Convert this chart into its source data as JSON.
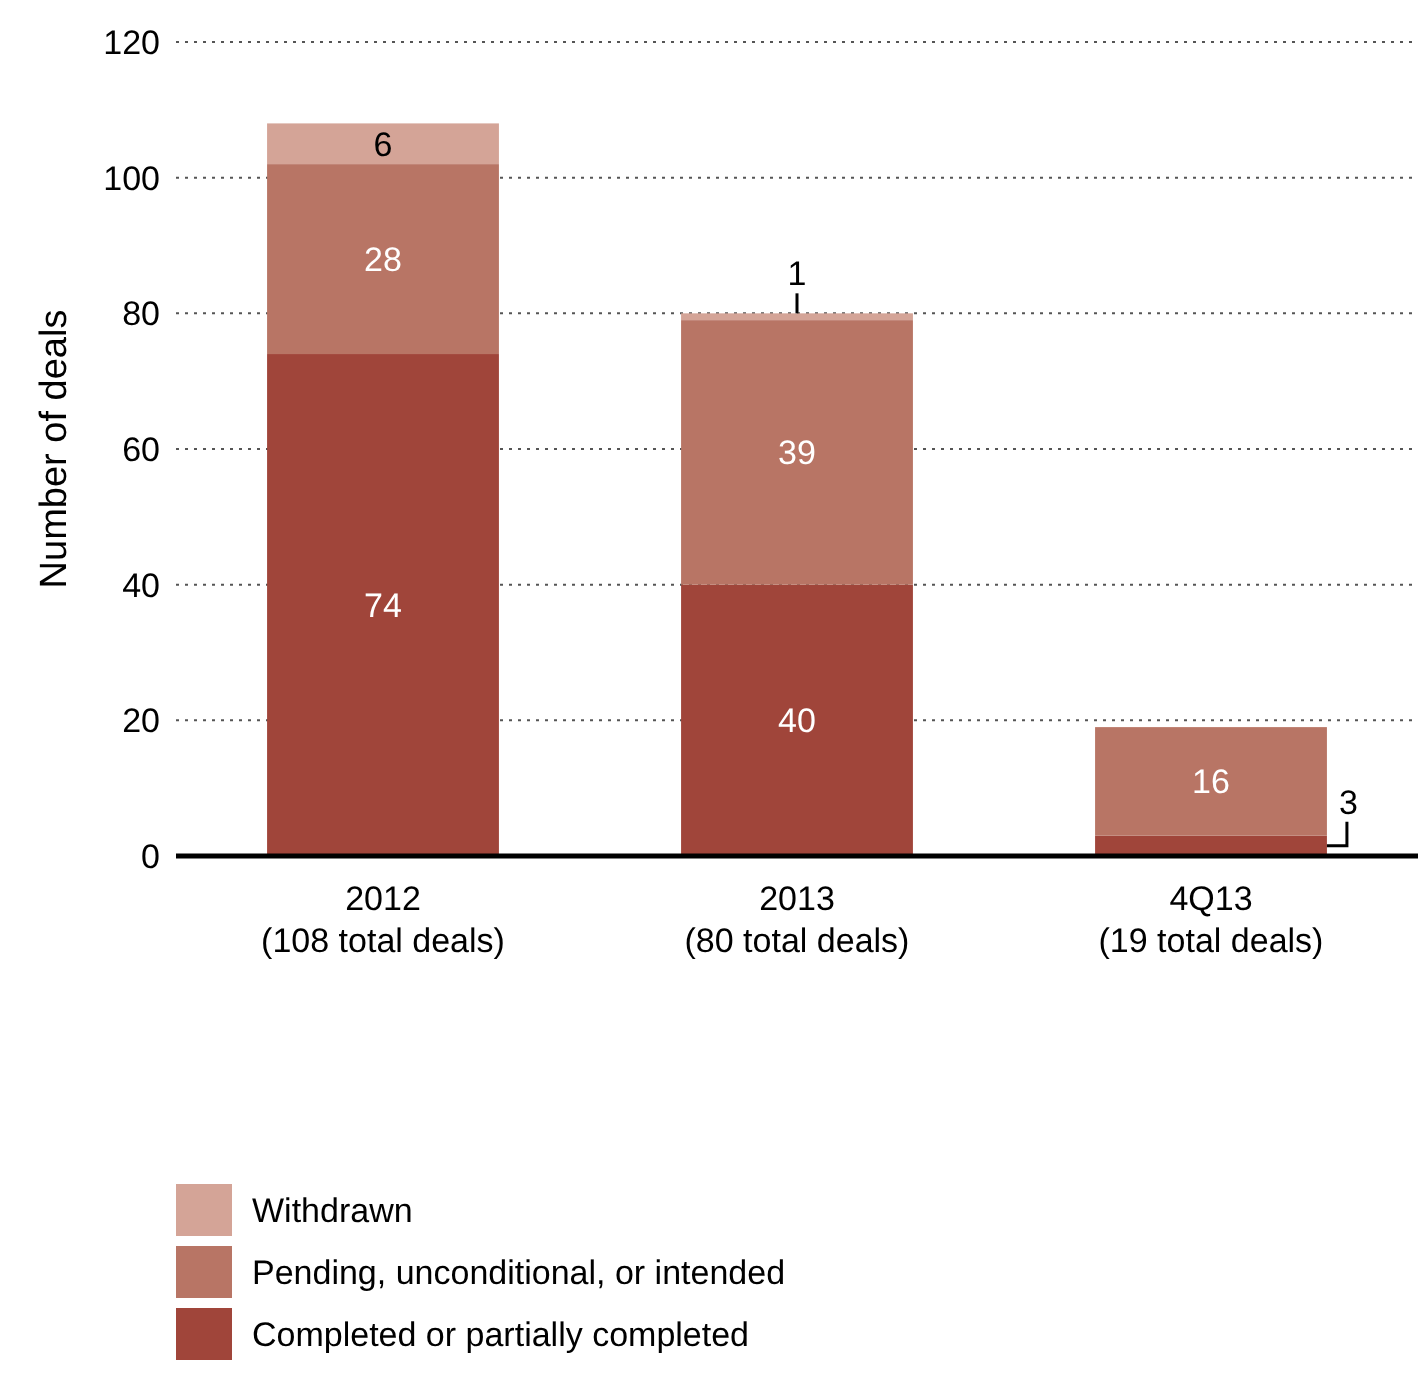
{
  "chart_data": {
    "type": "bar",
    "stacked": true,
    "ylabel": "Number of deals",
    "categories": [
      "2012\n(108 total deals)",
      "2013\n(80 total deals)",
      "4Q13\n(19 total deals)"
    ],
    "series": [
      {
        "name": "Completed or partially completed",
        "color": "#a0453a",
        "values": [
          74,
          40,
          3
        ],
        "value_labels": [
          "74",
          "40",
          "3"
        ]
      },
      {
        "name": "Pending, unconditional, or intended",
        "color": "#b87565",
        "values": [
          28,
          39,
          16
        ],
        "value_labels": [
          "28",
          "39",
          "16"
        ]
      },
      {
        "name": "Withdrawn",
        "color": "#d4a497",
        "values": [
          6,
          1,
          null
        ],
        "value_labels": [
          "6",
          "1",
          null
        ]
      }
    ],
    "ylim": [
      0,
      120
    ],
    "yticks": [
      0,
      20,
      40,
      60,
      80,
      100,
      120
    ],
    "grid": "y",
    "legend": "bottom"
  }
}
